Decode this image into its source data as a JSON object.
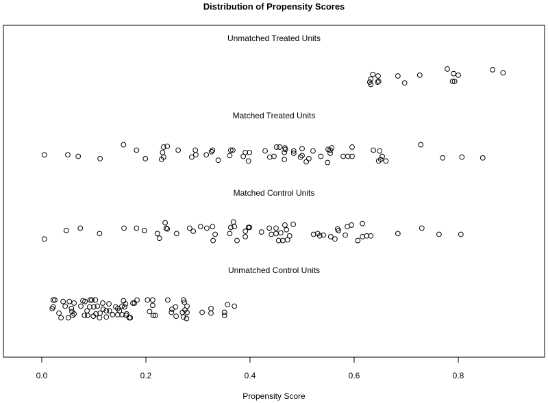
{
  "chart_data": {
    "type": "scatter",
    "title": "Distribution of Propensity Scores",
    "xlabel": "Propensity Score",
    "ylabel": "",
    "xlim": [
      -0.07,
      0.97
    ],
    "xticks": [
      0.0,
      0.2,
      0.4,
      0.6,
      0.8
    ],
    "xtick_labels": [
      "0.0",
      "0.2",
      "0.4",
      "0.6",
      "0.8"
    ],
    "grid": false,
    "marker": "open-circle",
    "point_format": "[propensity_score, vertical_jitter]",
    "groups": [
      {
        "name": "Unmatched Treated Units",
        "points": [
          [
            0.636,
            0.02
          ],
          [
            0.646,
            0
          ],
          [
            0.632,
            -0.04
          ],
          [
            0.63,
            -0.08
          ],
          [
            0.632,
            -0.11
          ],
          [
            0.645,
            -0.08
          ],
          [
            0.647,
            -0.07
          ],
          [
            0.684,
            0
          ],
          [
            0.697,
            -0.09
          ],
          [
            0.726,
            0.01
          ],
          [
            0.779,
            0.09
          ],
          [
            0.791,
            0.03
          ],
          [
            0.8,
            0.01
          ],
          [
            0.789,
            -0.07
          ],
          [
            0.793,
            -0.07
          ],
          [
            0.866,
            0.08
          ],
          [
            0.886,
            0.04
          ]
        ]
      },
      {
        "name": "Matched Treated Units",
        "points": [
          [
            0.005,
            -0.02
          ],
          [
            0.05,
            -0.02
          ],
          [
            0.07,
            -0.04
          ],
          [
            0.112,
            -0.07
          ],
          [
            0.157,
            0.11
          ],
          [
            0.182,
            0.04
          ],
          [
            0.199,
            -0.07
          ],
          [
            0.232,
            0.01
          ],
          [
            0.234,
            0.08
          ],
          [
            0.241,
            0.09
          ],
          [
            0.23,
            -0.08
          ],
          [
            0.234,
            -0.05
          ],
          [
            0.262,
            0.04
          ],
          [
            0.295,
            0.04
          ],
          [
            0.296,
            -0.02
          ],
          [
            0.288,
            -0.05
          ],
          [
            0.316,
            -0.02
          ],
          [
            0.328,
            0.04
          ],
          [
            0.326,
            0.02
          ],
          [
            0.339,
            -0.09
          ],
          [
            0.361,
            -0.03
          ],
          [
            0.363,
            0.04
          ],
          [
            0.367,
            0.04
          ],
          [
            0.387,
            -0.04
          ],
          [
            0.391,
            0.01
          ],
          [
            0.399,
            0.01
          ],
          [
            0.397,
            -0.1
          ],
          [
            0.429,
            0.03
          ],
          [
            0.438,
            -0.05
          ],
          [
            0.446,
            -0.04
          ],
          [
            0.451,
            0.08
          ],
          [
            0.457,
            0.08
          ],
          [
            0.467,
            0.07
          ],
          [
            0.468,
            0.05
          ],
          [
            0.466,
            0.01
          ],
          [
            0.466,
            -0.08
          ],
          [
            0.484,
            0.03
          ],
          [
            0.484,
            0
          ],
          [
            0.5,
            0.06
          ],
          [
            0.5,
            -0.03
          ],
          [
            0.497,
            -0.05
          ],
          [
            0.513,
            -0.07
          ],
          [
            0.508,
            -0.11
          ],
          [
            0.521,
            0.03
          ],
          [
            0.536,
            -0.04
          ],
          [
            0.549,
            -0.12
          ],
          [
            0.55,
            0.05
          ],
          [
            0.554,
            0.04
          ],
          [
            0.557,
            0.07
          ],
          [
            0.554,
            0
          ],
          [
            0.579,
            -0.04
          ],
          [
            0.588,
            -0.04
          ],
          [
            0.596,
            -0.04
          ],
          [
            0.596,
            0.08
          ],
          [
            0.637,
            0.04
          ],
          [
            0.649,
            0.03
          ],
          [
            0.654,
            -0.04
          ],
          [
            0.651,
            -0.08
          ],
          [
            0.647,
            -0.1
          ],
          [
            0.661,
            -0.1
          ],
          [
            0.728,
            0.11
          ],
          [
            0.77,
            -0.06
          ],
          [
            0.807,
            -0.05
          ],
          [
            0.847,
            -0.06
          ]
        ]
      },
      {
        "name": "Matched Control Units",
        "points": [
          [
            0.005,
            -0.1
          ],
          [
            0.047,
            0.01
          ],
          [
            0.074,
            0.04
          ],
          [
            0.111,
            -0.03
          ],
          [
            0.158,
            0.04
          ],
          [
            0.182,
            0.04
          ],
          [
            0.197,
            0.01
          ],
          [
            0.222,
            -0.03
          ],
          [
            0.226,
            -0.09
          ],
          [
            0.237,
            0.11
          ],
          [
            0.239,
            0.04
          ],
          [
            0.241,
            0.03
          ],
          [
            0.259,
            -0.03
          ],
          [
            0.284,
            0.04
          ],
          [
            0.291,
            0
          ],
          [
            0.305,
            0.06
          ],
          [
            0.317,
            0.04
          ],
          [
            0.328,
            0.06
          ],
          [
            0.333,
            -0.04
          ],
          [
            0.329,
            -0.12
          ],
          [
            0.361,
            -0.03
          ],
          [
            0.363,
            0.05
          ],
          [
            0.368,
            0.12
          ],
          [
            0.37,
            0.06
          ],
          [
            0.375,
            -0.12
          ],
          [
            0.391,
            0
          ],
          [
            0.391,
            -0.07
          ],
          [
            0.397,
            0.05
          ],
          [
            0.399,
            0.05
          ],
          [
            0.422,
            -0.01
          ],
          [
            0.437,
            0.04
          ],
          [
            0.441,
            -0.04
          ],
          [
            0.45,
            0.04
          ],
          [
            0.45,
            -0.03
          ],
          [
            0.459,
            -0.02
          ],
          [
            0.467,
            0.08
          ],
          [
            0.47,
            0.02
          ],
          [
            0.483,
            0.09
          ],
          [
            0.476,
            -0.06
          ],
          [
            0.472,
            -0.11
          ],
          [
            0.463,
            -0.12
          ],
          [
            0.455,
            -0.12
          ],
          [
            0.522,
            -0.04
          ],
          [
            0.53,
            -0.03
          ],
          [
            0.534,
            -0.06
          ],
          [
            0.541,
            -0.05
          ],
          [
            0.555,
            -0.07
          ],
          [
            0.563,
            -0.1
          ],
          [
            0.568,
            0.03
          ],
          [
            0.57,
            0.01
          ],
          [
            0.583,
            -0.05
          ],
          [
            0.587,
            0.06
          ],
          [
            0.595,
            0.08
          ],
          [
            0.616,
            0.1
          ],
          [
            0.607,
            -0.12
          ],
          [
            0.616,
            -0.07
          ],
          [
            0.624,
            -0.06
          ],
          [
            0.632,
            -0.06
          ],
          [
            0.684,
            -0.03
          ],
          [
            0.73,
            0.04
          ],
          [
            0.763,
            -0.04
          ],
          [
            0.805,
            -0.04
          ]
        ]
      },
      {
        "name": "Unmatched Control Units",
        "points": [
          [
            0.022,
            0.12
          ],
          [
            0.025,
            0.12
          ],
          [
            0.022,
            0.03
          ],
          [
            0.02,
            0.01
          ],
          [
            0.033,
            -0.05
          ],
          [
            0.037,
            -0.11
          ],
          [
            0.041,
            0.1
          ],
          [
            0.053,
            0.1
          ],
          [
            0.062,
            0.08
          ],
          [
            0.057,
            0.01
          ],
          [
            0.058,
            -0.03
          ],
          [
            0.062,
            -0.06
          ],
          [
            0.059,
            -0.08
          ],
          [
            0.075,
            0.04
          ],
          [
            0.079,
            0.11
          ],
          [
            0.083,
            0.1
          ],
          [
            0.087,
            -0.02
          ],
          [
            0.093,
            0.12
          ],
          [
            0.096,
            0.12
          ],
          [
            0.103,
            0.12
          ],
          [
            0.092,
            0.03
          ],
          [
            0.1,
            0.03
          ],
          [
            0.107,
            0.04
          ],
          [
            0.082,
            -0.08
          ],
          [
            0.088,
            -0.08
          ],
          [
            0.099,
            -0.09
          ],
          [
            0.104,
            -0.06
          ],
          [
            0.112,
            -0.05
          ],
          [
            0.117,
            0.08
          ],
          [
            0.118,
            0
          ],
          [
            0.124,
            -0.02
          ],
          [
            0.129,
            0.07
          ],
          [
            0.13,
            -0.02
          ],
          [
            0.136,
            -0.07
          ],
          [
            0.142,
            0.03
          ],
          [
            0.146,
            0.01
          ],
          [
            0.146,
            -0.07
          ],
          [
            0.149,
            -0.02
          ],
          [
            0.157,
            0.11
          ],
          [
            0.159,
            0.03
          ],
          [
            0.162,
            -0.08
          ],
          [
            0.168,
            -0.11
          ],
          [
            0.175,
            0.08
          ],
          [
            0.183,
            0.12
          ],
          [
            0.111,
            -0.11
          ],
          [
            0.124,
            -0.1
          ],
          [
            0.051,
            -0.11
          ],
          [
            0.045,
            0.04
          ],
          [
            0.161,
            0.07
          ],
          [
            0.154,
            0.04
          ],
          [
            0.154,
            -0.07
          ],
          [
            0.163,
            -0.06
          ],
          [
            0.17,
            -0.11
          ],
          [
            0.178,
            0.08
          ],
          [
            0.203,
            0.12
          ],
          [
            0.213,
            0.12
          ],
          [
            0.213,
            0.05
          ],
          [
            0.207,
            -0.03
          ],
          [
            0.214,
            -0.08
          ],
          [
            0.218,
            -0.08
          ],
          [
            0.242,
            0.12
          ],
          [
            0.257,
            0.03
          ],
          [
            0.25,
            0
          ],
          [
            0.249,
            -0.04
          ],
          [
            0.258,
            -0.09
          ],
          [
            0.272,
            0.12
          ],
          [
            0.274,
            0.09
          ],
          [
            0.279,
            0.04
          ],
          [
            0.275,
            -0.01
          ],
          [
            0.27,
            -0.04
          ],
          [
            0.279,
            -0.04
          ],
          [
            0.272,
            -0.1
          ],
          [
            0.278,
            -0.12
          ],
          [
            0.308,
            -0.04
          ],
          [
            0.325,
            0.01
          ],
          [
            0.325,
            -0.05
          ],
          [
            0.351,
            -0.04
          ],
          [
            0.351,
            -0.08
          ],
          [
            0.357,
            0.06
          ],
          [
            0.37,
            0.04
          ]
        ]
      }
    ]
  }
}
